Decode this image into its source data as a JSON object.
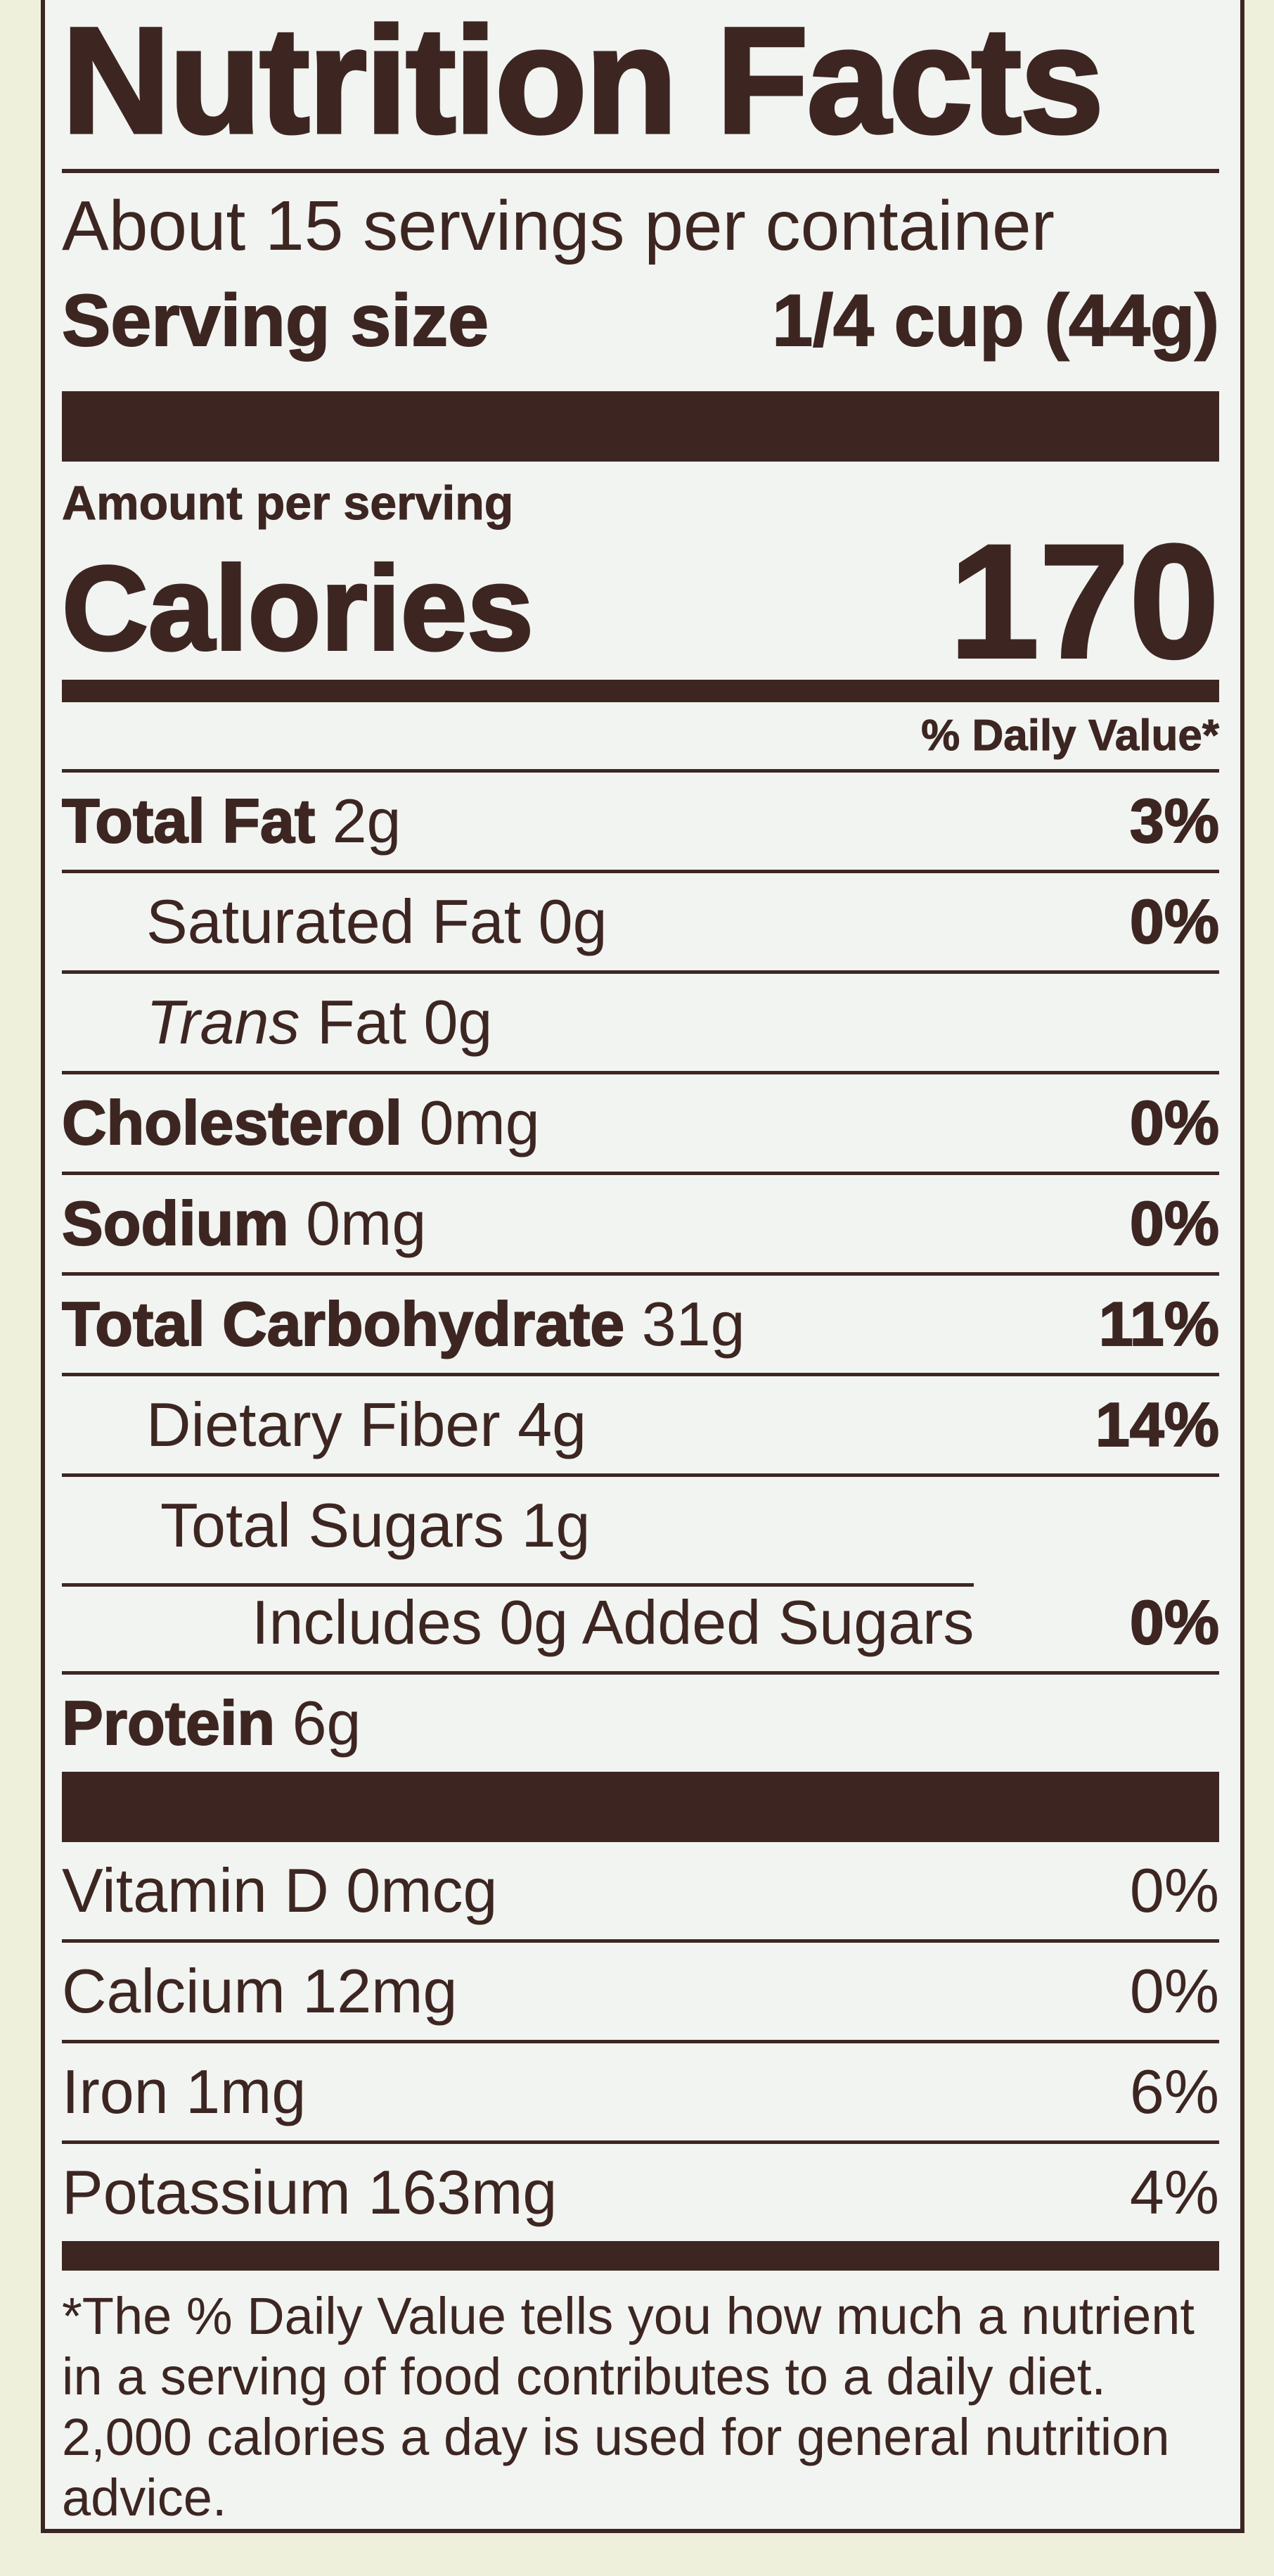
{
  "title": "Nutrition Facts",
  "servings_per_container": "About 15 servings per container",
  "serving_size": {
    "label": "Serving size",
    "value": "1/4 cup (44g)"
  },
  "amount_per_serving": "Amount per serving",
  "calories": {
    "label": "Calories",
    "value": "170"
  },
  "daily_value_header": "% Daily Value*",
  "nutrients": [
    {
      "name": "Total Fat",
      "amount": "2g",
      "dv": "3%"
    },
    {
      "name": "Saturated Fat",
      "amount": "0g",
      "dv": "0%"
    },
    {
      "name": "Trans",
      "name_rest": "Fat",
      "amount": "0g",
      "dv": ""
    },
    {
      "name": "Cholesterol",
      "amount": "0mg",
      "dv": "0%"
    },
    {
      "name": "Sodium",
      "amount": "0mg",
      "dv": "0%"
    },
    {
      "name": "Total Carbohydrate",
      "amount": "31g",
      "dv": "11%"
    },
    {
      "name": "Dietary Fiber",
      "amount": "4g",
      "dv": "14%"
    },
    {
      "name": "Total Sugars",
      "amount": "1g",
      "dv": ""
    },
    {
      "name": "Includes 0g Added Sugars",
      "amount": "",
      "dv": "0%"
    },
    {
      "name": "Protein",
      "amount": "6g",
      "dv": ""
    }
  ],
  "vitamins": [
    {
      "name": "Vitamin D",
      "amount": "0mcg",
      "dv": "0%"
    },
    {
      "name": "Calcium",
      "amount": "12mg",
      "dv": "0%"
    },
    {
      "name": "Iron",
      "amount": "1mg",
      "dv": "6%"
    },
    {
      "name": "Potassium",
      "amount": "163mg",
      "dv": "4%"
    }
  ],
  "footnote": "*The % Daily Value tells you how much a nutrient in a serving of food contributes to a daily diet. 2,000 calories a day is used for general nutrition advice.",
  "colors": {
    "ink": "#3d2622",
    "label_bg": "#f2f4f1",
    "package_bg": "#eef0dc"
  }
}
